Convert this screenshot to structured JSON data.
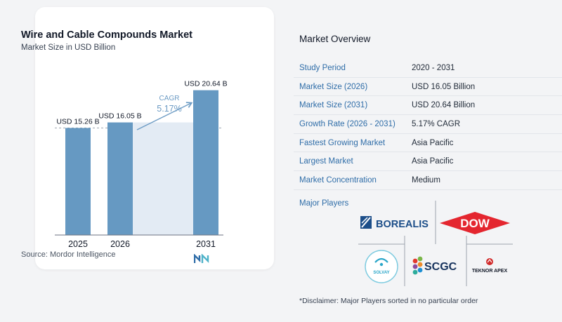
{
  "chart_data": {
    "type": "bar",
    "title": "Wire and Cable Compounds Market",
    "subtitle": "Market Size in USD Billion",
    "categories": [
      "2025",
      "2026",
      "2031"
    ],
    "values": [
      15.26,
      16.05,
      20.64
    ],
    "data_labels": [
      "USD 15.26 B",
      "USD 16.05 B",
      "USD 20.64 B"
    ],
    "cagr_label": "CAGR",
    "cagr_value": "5.17%",
    "ylim": [
      0,
      21.5
    ],
    "bar_color": "#6699c2",
    "grid": false
  },
  "source_text": "Source:  Mordor Intelligence",
  "overview": {
    "title": "Market Overview",
    "rows": [
      {
        "label": "Study Period",
        "value": "2020 - 2031"
      },
      {
        "label": "Market Size (2026)",
        "value": "USD 16.05 Billion"
      },
      {
        "label": "Market Size (2031)",
        "value": "USD 20.64 Billion"
      },
      {
        "label": "Growth Rate (2026 - 2031)",
        "value": "5.17% CAGR"
      },
      {
        "label": "Fastest Growing Market",
        "value": "Asia Pacific"
      },
      {
        "label": "Largest Market",
        "value": "Asia Pacific"
      },
      {
        "label": "Market Concentration",
        "value": "Medium"
      }
    ]
  },
  "players": {
    "title": "Major Players",
    "logos": [
      "BOREALIS",
      "DOW",
      "SOLVAY",
      "SCGC",
      "TEKNOR APEX"
    ]
  },
  "disclaimer": "*Disclaimer: Major Players sorted in no particular order",
  "colors": {
    "label_blue": "#2f6da8",
    "dow_red": "#e4262f",
    "borealis_blue": "#1c4e89"
  }
}
